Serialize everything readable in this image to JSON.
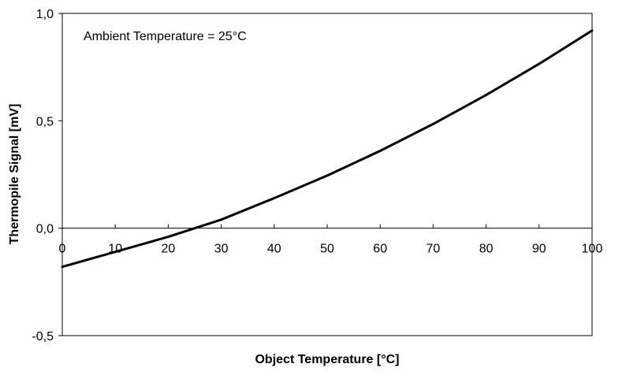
{
  "chart_data": {
    "type": "line",
    "title": "",
    "xlabel": "Object Temperature [°C]",
    "ylabel": "Thermopile Signal [mV]",
    "annotation": "Ambient Temperature = 25°C",
    "xlim": [
      0,
      100
    ],
    "ylim": [
      -0.5,
      1.0
    ],
    "x_ticks": [
      0,
      10,
      20,
      30,
      40,
      50,
      60,
      70,
      80,
      90,
      100
    ],
    "x_tick_labels": [
      "0",
      "10",
      "20",
      "30",
      "40",
      "50",
      "60",
      "70",
      "80",
      "90",
      "100"
    ],
    "y_ticks": [
      -0.5,
      0.0,
      0.5,
      1.0
    ],
    "y_tick_labels": [
      "-0,5",
      "0,0",
      "0,5",
      "1,0"
    ],
    "grid": false,
    "series": [
      {
        "x": [
          0,
          10,
          20,
          25,
          30,
          40,
          50,
          60,
          70,
          80,
          90,
          100
        ],
        "values": [
          -0.18,
          -0.11,
          -0.04,
          0.0,
          0.04,
          0.14,
          0.245,
          0.36,
          0.485,
          0.62,
          0.765,
          0.92
        ],
        "color": "#000000"
      }
    ]
  }
}
